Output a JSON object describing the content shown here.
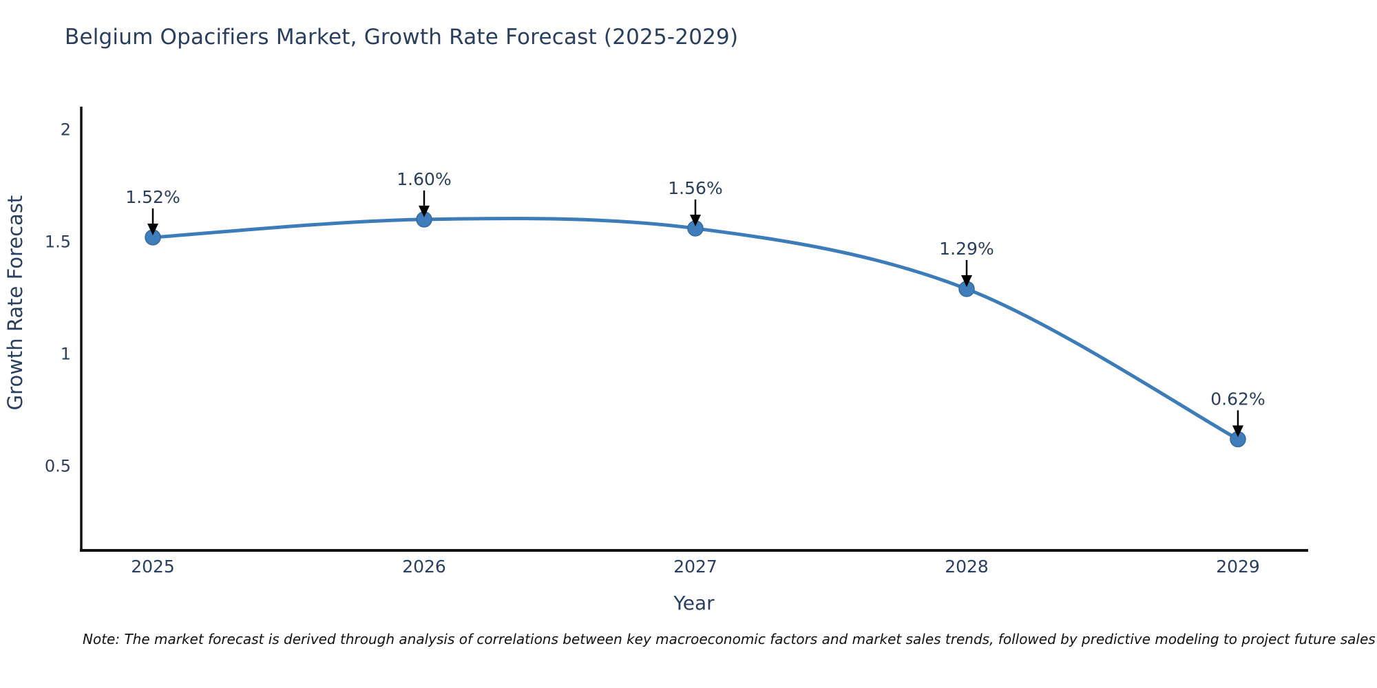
{
  "chart_data": {
    "type": "line",
    "title": "Belgium Opacifiers Market, Growth Rate Forecast (2025-2029)",
    "xlabel": "Year",
    "ylabel": "Growth Rate Forecast",
    "categories": [
      "2025",
      "2026",
      "2027",
      "2028",
      "2029"
    ],
    "values": [
      1.52,
      1.6,
      1.56,
      1.29,
      0.62
    ],
    "point_labels": [
      "1.52%",
      "1.60%",
      "1.56%",
      "1.29%",
      "0.62%"
    ],
    "y_ticks": [
      2,
      1.5,
      1,
      0.5
    ],
    "y_tick_labels": [
      "2",
      "1.5",
      "1",
      "0.5"
    ],
    "ylim": [
      0.12,
      2.1
    ],
    "grid": false,
    "legend_position": "none",
    "line_shape": "spline",
    "markers": true,
    "annotation_style": "value label above each point with downward black arrow"
  },
  "colors": {
    "line": "#3c7cb8",
    "marker_fill": "#3f7eba",
    "marker_edge": "#35699c",
    "axis_line": "#111111",
    "tick_text": "#2a3f5f",
    "title_text": "#2a3f5f",
    "annotation_text": "#2a3f5f",
    "arrow": "#000000",
    "background": "#ffffff",
    "note_text": "#111111"
  },
  "note": "Note: The market forecast is derived through analysis of correlations between key macroeconomic factors and market sales trends, followed by predictive modeling to project future sales"
}
